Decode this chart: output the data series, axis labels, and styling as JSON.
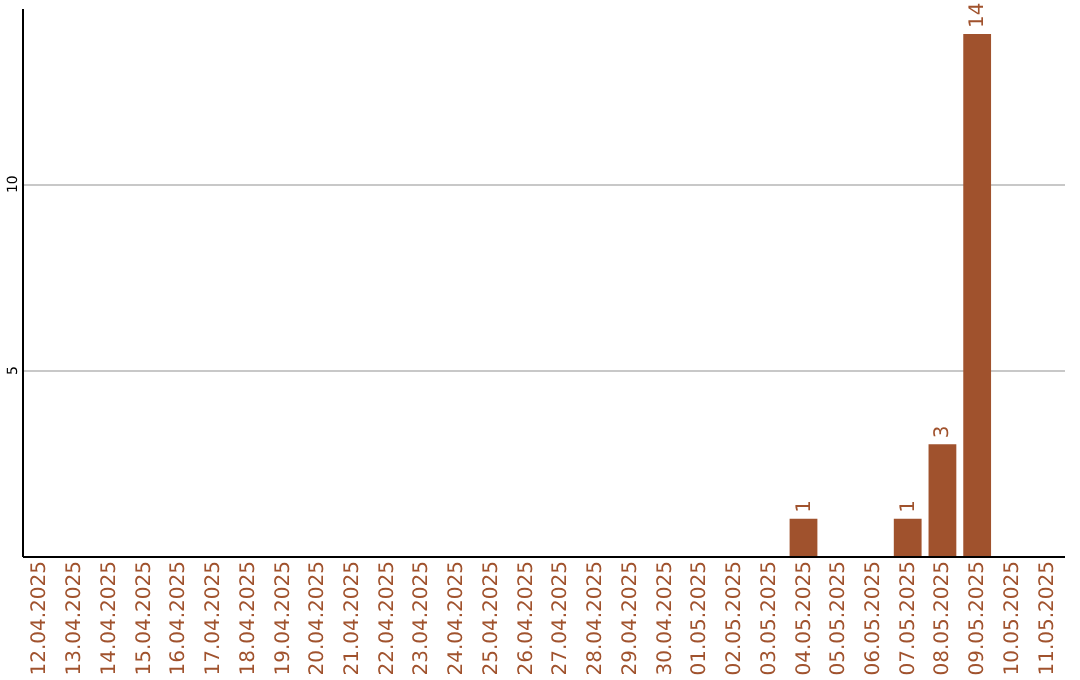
{
  "chart_data": {
    "type": "bar",
    "categories": [
      "12.04.2025",
      "13.04.2025",
      "14.04.2025",
      "15.04.2025",
      "16.04.2025",
      "17.04.2025",
      "18.04.2025",
      "19.04.2025",
      "20.04.2025",
      "21.04.2025",
      "22.04.2025",
      "23.04.2025",
      "24.04.2025",
      "25.04.2025",
      "26.04.2025",
      "27.04.2025",
      "28.04.2025",
      "29.04.2025",
      "30.04.2025",
      "01.05.2025",
      "02.05.2025",
      "03.05.2025",
      "04.05.2025",
      "05.05.2025",
      "06.05.2025",
      "07.05.2025",
      "08.05.2025",
      "09.05.2025",
      "10.05.2025",
      "11.05.2025"
    ],
    "values": [
      0,
      0,
      0,
      0,
      0,
      0,
      0,
      0,
      0,
      0,
      0,
      0,
      0,
      0,
      0,
      0,
      0,
      0,
      0,
      0,
      0,
      0,
      1,
      0,
      0,
      1,
      3,
      14,
      0,
      0
    ],
    "value_labels": [
      null,
      null,
      null,
      null,
      null,
      null,
      null,
      null,
      null,
      null,
      null,
      null,
      null,
      null,
      null,
      null,
      null,
      null,
      null,
      null,
      null,
      null,
      "1",
      null,
      null,
      "1",
      "3",
      "14",
      null,
      null
    ],
    "color": "#a0522d",
    "ylim": [
      0,
      14.7
    ],
    "yticks": [
      5,
      10
    ],
    "grid": "y"
  }
}
